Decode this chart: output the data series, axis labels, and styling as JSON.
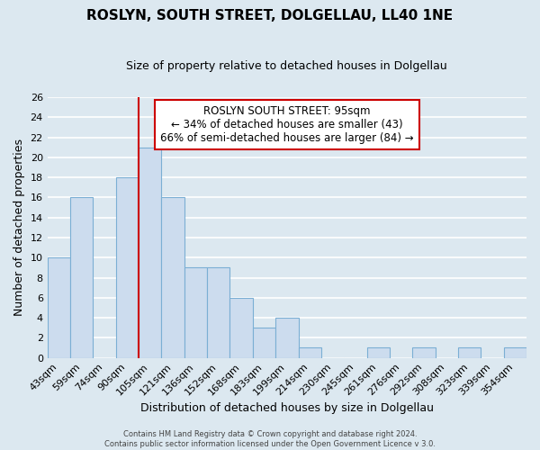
{
  "title": "ROSLYN, SOUTH STREET, DOLGELLAU, LL40 1NE",
  "subtitle": "Size of property relative to detached houses in Dolgellau",
  "xlabel": "Distribution of detached houses by size in Dolgellau",
  "ylabel": "Number of detached properties",
  "bin_labels": [
    "43sqm",
    "59sqm",
    "74sqm",
    "90sqm",
    "105sqm",
    "121sqm",
    "136sqm",
    "152sqm",
    "168sqm",
    "183sqm",
    "199sqm",
    "214sqm",
    "230sqm",
    "245sqm",
    "261sqm",
    "276sqm",
    "292sqm",
    "308sqm",
    "323sqm",
    "339sqm",
    "354sqm"
  ],
  "bar_heights": [
    10,
    16,
    0,
    18,
    21,
    16,
    9,
    9,
    6,
    3,
    4,
    1,
    0,
    0,
    1,
    0,
    1,
    0,
    1,
    0,
    1
  ],
  "bar_color": "#ccdcee",
  "bar_edge_color": "#7bafd4",
  "vline_x_index": 3.5,
  "annotation_title": "ROSLYN SOUTH STREET: 95sqm",
  "annotation_line1": "← 34% of detached houses are smaller (43)",
  "annotation_line2": "66% of semi-detached houses are larger (84) →",
  "annotation_box_facecolor": "#ffffff",
  "annotation_box_edgecolor": "#cc0000",
  "vline_color": "#cc0000",
  "ylim": [
    0,
    26
  ],
  "yticks": [
    0,
    2,
    4,
    6,
    8,
    10,
    12,
    14,
    16,
    18,
    20,
    22,
    24,
    26
  ],
  "footer_line1": "Contains HM Land Registry data © Crown copyright and database right 2024.",
  "footer_line2": "Contains public sector information licensed under the Open Government Licence v 3.0.",
  "bg_color": "#dce8f0",
  "grid_color": "#ffffff",
  "title_fontsize": 11,
  "subtitle_fontsize": 9,
  "annotation_fontsize": 8.5,
  "axis_label_fontsize": 9,
  "tick_fontsize": 8
}
